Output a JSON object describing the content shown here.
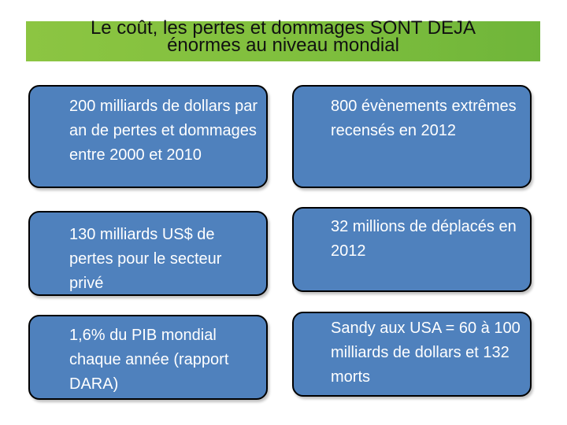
{
  "title": {
    "line1": "Le coût, les pertes et dommages SONT DEJA",
    "line2": "énormes au niveau mondial"
  },
  "cards": [
    {
      "text": "200 milliards de dollars par an de pertes et dommages entre 2000 et 2010"
    },
    {
      "text": "800 évènements extrêmes recensés en 2012"
    },
    {
      "text": "130 milliards US$ de pertes pour le secteur privé"
    },
    {
      "text": "32 millions de déplacés en 2012"
    },
    {
      "text": "1,6% du PIB mondial chaque année (rapport DARA)"
    },
    {
      "text": "Sandy aux USA = 60 à 100 milliards de dollars et 132 morts"
    }
  ],
  "colors": {
    "banner": "#8cc542",
    "card_fill": "#4f81bd",
    "card_border": "#000000"
  }
}
